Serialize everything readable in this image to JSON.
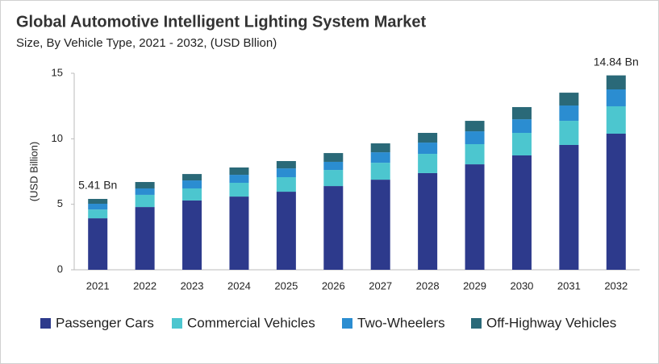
{
  "chart_data": {
    "type": "bar",
    "stacked": true,
    "title": "Global Automotive Intelligent Lighting System Market",
    "subtitle": "Size, By Vehicle Type, 2021 - 2032, (USD Bllion)",
    "y_label": "(USD Billion)",
    "categories": [
      "2021",
      "2022",
      "2023",
      "2024",
      "2025",
      "2026",
      "2027",
      "2028",
      "2029",
      "2030",
      "2031",
      "2032"
    ],
    "series": [
      {
        "name": "Passenger Cars",
        "color": "#2d3a8c",
        "values": [
          3.93,
          4.79,
          5.29,
          5.59,
          5.96,
          6.39,
          6.88,
          7.38,
          8.05,
          8.73,
          9.53,
          10.39
        ]
      },
      {
        "name": "Commercial Vehicles",
        "color": "#4cc6cf",
        "values": [
          0.67,
          0.93,
          0.92,
          1.05,
          1.11,
          1.23,
          1.29,
          1.47,
          1.54,
          1.72,
          1.84,
          2.09
        ]
      },
      {
        "name": "Two-Wheelers",
        "color": "#2b8dd1",
        "values": [
          0.44,
          0.49,
          0.61,
          0.61,
          0.67,
          0.62,
          0.8,
          0.86,
          0.98,
          1.04,
          1.17,
          1.29
        ]
      },
      {
        "name": "Off-Highway Vehicles",
        "color": "#2a6978",
        "values": [
          0.37,
          0.49,
          0.49,
          0.56,
          0.56,
          0.67,
          0.68,
          0.74,
          0.8,
          0.93,
          0.98,
          1.07
        ]
      }
    ],
    "annotations": [
      "5.41 Bn",
      "14.84 Bn"
    ],
    "ylim": [
      0,
      15
    ],
    "yticks": [
      0,
      5,
      10,
      15
    ],
    "grid": false,
    "legend": "bottom"
  }
}
